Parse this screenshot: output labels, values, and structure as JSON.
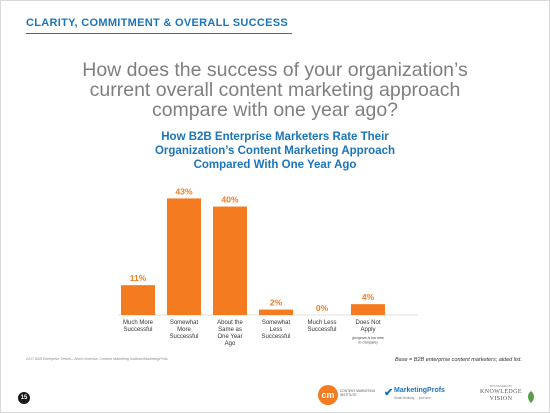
{
  "section_header": "CLARITY, COMMITMENT & OVERALL SUCCESS",
  "question_lines": [
    "How does the success of your organization’s",
    "current overall content marketing approach",
    "compare with one year ago?"
  ],
  "colors": {
    "accent_blue": "#1b75bb",
    "bar_orange": "#f47b20",
    "question_gray": "#7f7f7f"
  },
  "chart_data": {
    "type": "bar",
    "title_lines": [
      "How B2B Enterprise Marketers Rate Their",
      "Organization’s Content Marketing Approach",
      "Compared With One Year Ago"
    ],
    "categories": [
      [
        "Much More",
        "Successful"
      ],
      [
        "Somewhat",
        "More",
        "Successful"
      ],
      [
        "About the",
        "Same as",
        "One Year",
        "Ago"
      ],
      [
        "Somewhat",
        "Less",
        "Successful"
      ],
      [
        "Much Less",
        "Successful"
      ],
      [
        "Does Not",
        "Apply"
      ]
    ],
    "values": [
      11,
      43,
      40,
      2,
      0,
      4
    ],
    "value_labels": [
      "11%",
      "43%",
      "40%",
      "2%",
      "0%",
      "4%"
    ],
    "notes": {
      "5": [
        "(program is too new",
        "to compare)"
      ]
    },
    "ylim": [
      0,
      45
    ],
    "grid": false,
    "xlabel": "",
    "ylabel": ""
  },
  "footer": {
    "source": "2017 B2B Enterprise Trends—North America: Content Marketing Institute/MarketingProfs",
    "base": "Base = B2B enterprise content marketers; aided list.",
    "page_number": "15"
  },
  "logos": {
    "cmi_mark": "cm",
    "cmi_text": "CONTENT MARKETING INSTITUTE",
    "mp_name": "MarketingProfs",
    "mp_tagline": "Smart thinking ... just now",
    "kv_small": "SPONSORED BY",
    "kv_name_1": "KNOWLEDGE",
    "kv_name_2": "VISION"
  }
}
